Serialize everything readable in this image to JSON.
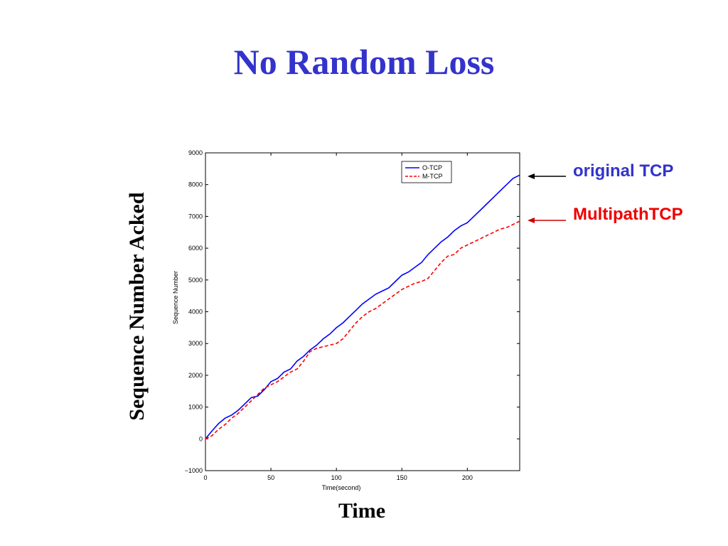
{
  "slide": {
    "title": "No Random Loss",
    "ylabel": "Sequence Number Acked",
    "xlabel": "Time"
  },
  "callouts": {
    "original": "original TCP",
    "multipath": "MultipathTCP",
    "original_color": "#3333cc",
    "multipath_color": "#ee0000"
  },
  "chart_data": {
    "type": "line",
    "xlabel": "Time(second)",
    "ylabel": "Sequence Number",
    "xlim": [
      0,
      240
    ],
    "ylim": [
      -1000,
      9000
    ],
    "xticks": [
      0,
      50,
      100,
      150,
      200
    ],
    "yticks": [
      -1000,
      0,
      1000,
      2000,
      3000,
      4000,
      5000,
      6000,
      7000,
      8000,
      9000
    ],
    "grid": false,
    "legend_position": "top-right",
    "series": [
      {
        "name": "O-TCP",
        "color": "#0000ff",
        "style": "solid",
        "x": [
          0,
          5,
          10,
          15,
          20,
          25,
          30,
          35,
          40,
          45,
          50,
          55,
          60,
          65,
          70,
          75,
          80,
          85,
          90,
          95,
          100,
          105,
          110,
          115,
          120,
          125,
          130,
          135,
          140,
          145,
          150,
          155,
          160,
          165,
          170,
          175,
          180,
          185,
          190,
          195,
          200,
          205,
          210,
          215,
          220,
          225,
          230,
          235,
          240
        ],
        "y": [
          0,
          250,
          480,
          650,
          750,
          900,
          1100,
          1300,
          1350,
          1550,
          1800,
          1900,
          2100,
          2200,
          2450,
          2600,
          2800,
          2950,
          3150,
          3300,
          3500,
          3650,
          3850,
          4050,
          4250,
          4400,
          4550,
          4650,
          4750,
          4950,
          5150,
          5250,
          5400,
          5550,
          5800,
          6000,
          6200,
          6350,
          6550,
          6700,
          6800,
          7000,
          7200,
          7400,
          7600,
          7800,
          8000,
          8200,
          8300
        ]
      },
      {
        "name": "M-TCP",
        "color": "#ff0000",
        "style": "dashed",
        "x": [
          0,
          5,
          10,
          15,
          20,
          25,
          30,
          35,
          40,
          45,
          50,
          55,
          60,
          65,
          70,
          75,
          80,
          85,
          90,
          95,
          100,
          105,
          110,
          115,
          120,
          125,
          130,
          135,
          140,
          145,
          150,
          155,
          160,
          165,
          170,
          175,
          180,
          185,
          190,
          195,
          200,
          205,
          210,
          215,
          220,
          225,
          230,
          235,
          240
        ],
        "y": [
          0,
          100,
          300,
          450,
          650,
          800,
          1000,
          1200,
          1400,
          1600,
          1700,
          1800,
          1950,
          2100,
          2200,
          2450,
          2750,
          2850,
          2900,
          2950,
          3000,
          3150,
          3400,
          3650,
          3850,
          4000,
          4100,
          4250,
          4400,
          4550,
          4700,
          4800,
          4900,
          4950,
          5050,
          5300,
          5550,
          5750,
          5800,
          6000,
          6100,
          6200,
          6300,
          6400,
          6500,
          6600,
          6650,
          6750,
          6850
        ]
      }
    ]
  }
}
